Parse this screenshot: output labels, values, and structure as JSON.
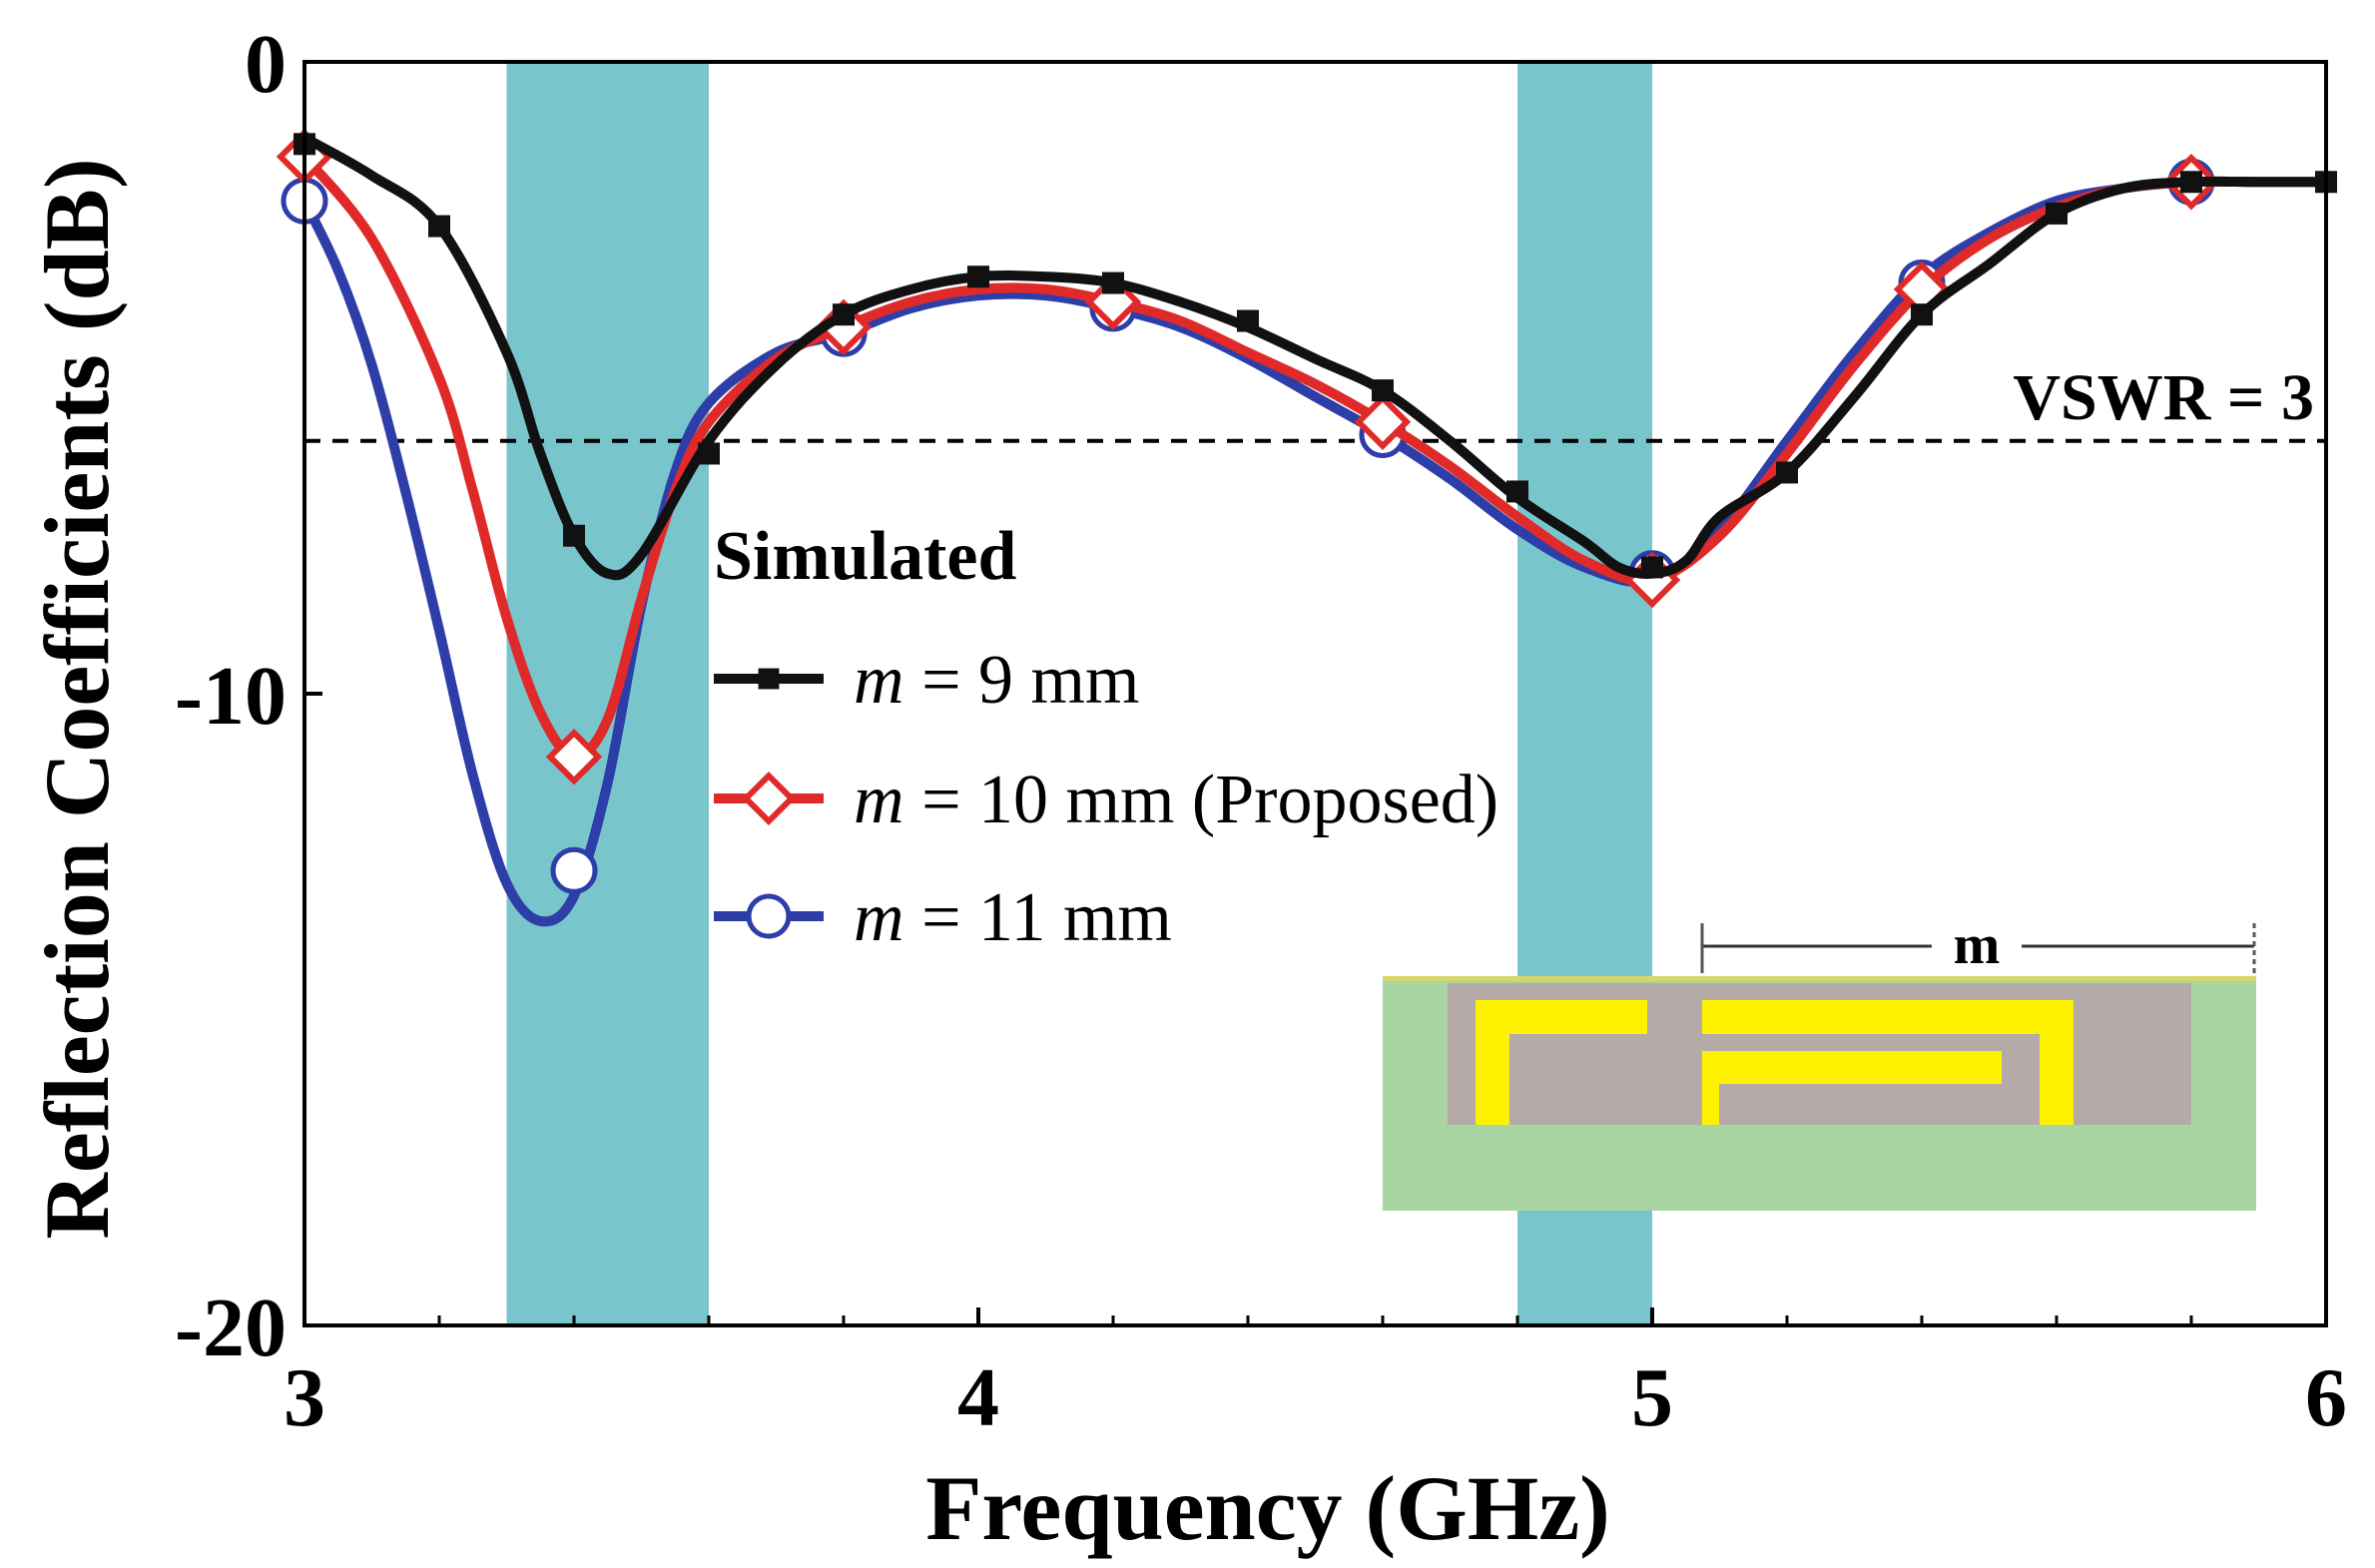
{
  "chart_data": {
    "type": "line",
    "title": "",
    "xlabel": "Frequency (GHz)",
    "ylabel": "Reflection Coefficients (dB)",
    "xlim": [
      3,
      6
    ],
    "ylim": [
      -20,
      0
    ],
    "xticks": [
      3,
      4,
      5,
      6
    ],
    "yticks": [
      0,
      -10,
      -20
    ],
    "xtick_labels": [
      "3",
      "4",
      "5",
      "6"
    ],
    "ytick_labels": [
      "0",
      "-10",
      "-20"
    ],
    "shaded_bands": [
      {
        "x0": 3.3,
        "x1": 3.6,
        "color": "#78C5CC"
      },
      {
        "x0": 4.8,
        "x1": 5.0,
        "color": "#78C5CC"
      }
    ],
    "reference_line": {
      "y": -6.0,
      "label": "VSWR = 3",
      "style": "dashed"
    },
    "legend": {
      "title": "Simulated",
      "position": "center"
    },
    "series": [
      {
        "name": "m = 9 mm",
        "label_var": "m",
        "label_rest": " = 9 mm",
        "color": "#111111",
        "marker": "square",
        "x": [
          3.0,
          3.1,
          3.2,
          3.3,
          3.35,
          3.4,
          3.45,
          3.5,
          3.6,
          3.7,
          3.8,
          3.9,
          4.0,
          4.1,
          4.2,
          4.3,
          4.4,
          4.5,
          4.6,
          4.7,
          4.8,
          4.9,
          4.95,
          5.0,
          5.05,
          5.1,
          5.2,
          5.3,
          5.4,
          5.5,
          5.6,
          5.7,
          5.8,
          5.9,
          6.0
        ],
        "y": [
          -1.2,
          -1.8,
          -2.6,
          -4.6,
          -6.2,
          -7.5,
          -8.1,
          -7.8,
          -6.0,
          -4.8,
          -4.0,
          -3.6,
          -3.4,
          -3.4,
          -3.5,
          -3.8,
          -4.2,
          -4.7,
          -5.2,
          -6.0,
          -6.9,
          -7.6,
          -8.0,
          -8.1,
          -7.9,
          -7.2,
          -6.5,
          -5.3,
          -4.0,
          -3.2,
          -2.4,
          -2.0,
          -1.9,
          -1.9,
          -1.9
        ],
        "marker_x": [
          3.0,
          3.2,
          3.4,
          3.6,
          3.8,
          4.0,
          4.2,
          4.4,
          4.6,
          4.8,
          5.0,
          5.2,
          5.4,
          5.6,
          5.8,
          6.0
        ],
        "marker_y": [
          -1.3,
          -2.6,
          -7.5,
          -6.2,
          -4.0,
          -3.4,
          -3.5,
          -4.1,
          -5.2,
          -6.8,
          -8.0,
          -6.5,
          -4.0,
          -2.4,
          -1.9,
          -1.9
        ]
      },
      {
        "name": "m = 10 mm (Proposed)",
        "label_var": "m",
        "label_rest": " = 10 mm (Proposed)",
        "color": "#E02A2A",
        "marker": "diamond",
        "x": [
          3.0,
          3.1,
          3.2,
          3.25,
          3.3,
          3.35,
          3.4,
          3.45,
          3.5,
          3.55,
          3.6,
          3.7,
          3.8,
          3.9,
          4.0,
          4.1,
          4.2,
          4.3,
          4.4,
          4.5,
          4.6,
          4.7,
          4.8,
          4.9,
          5.0,
          5.1,
          5.2,
          5.3,
          5.4,
          5.5,
          5.6,
          5.7,
          5.8,
          5.9,
          6.0
        ],
        "y": [
          -1.5,
          -2.8,
          -5.0,
          -6.8,
          -8.8,
          -10.3,
          -11.0,
          -10.4,
          -8.5,
          -6.8,
          -5.7,
          -4.7,
          -4.2,
          -3.8,
          -3.6,
          -3.6,
          -3.8,
          -4.1,
          -4.6,
          -5.1,
          -5.7,
          -6.4,
          -7.2,
          -7.9,
          -8.2,
          -7.5,
          -6.2,
          -4.8,
          -3.6,
          -2.8,
          -2.3,
          -2.0,
          -1.9,
          -1.9,
          -1.9
        ],
        "marker_x": [
          3.0,
          3.4,
          3.8,
          4.2,
          4.6,
          5.0,
          5.4,
          5.8
        ],
        "marker_y": [
          -1.5,
          -11.0,
          -4.2,
          -3.8,
          -5.7,
          -8.2,
          -3.6,
          -1.9
        ]
      },
      {
        "name": "m = 11 mm",
        "label_var": "m",
        "label_rest": " = 11 mm",
        "color": "#2E3EA8",
        "marker": "circle",
        "x": [
          3.0,
          3.05,
          3.1,
          3.15,
          3.2,
          3.25,
          3.3,
          3.35,
          3.4,
          3.45,
          3.5,
          3.55,
          3.6,
          3.7,
          3.8,
          3.9,
          4.0,
          4.1,
          4.2,
          4.3,
          4.4,
          4.5,
          4.6,
          4.7,
          4.8,
          4.9,
          5.0,
          5.1,
          5.2,
          5.3,
          5.4,
          5.5,
          5.6,
          5.7,
          5.8,
          5.9,
          6.0
        ],
        "y": [
          -2.2,
          -3.3,
          -4.8,
          -6.8,
          -9.0,
          -11.3,
          -13.0,
          -13.6,
          -13.2,
          -11.4,
          -8.6,
          -6.5,
          -5.4,
          -4.6,
          -4.3,
          -3.9,
          -3.7,
          -3.7,
          -3.9,
          -4.2,
          -4.7,
          -5.3,
          -5.9,
          -6.6,
          -7.4,
          -8.0,
          -8.2,
          -7.4,
          -6.0,
          -4.6,
          -3.4,
          -2.7,
          -2.2,
          -2.0,
          -1.9,
          -1.9,
          -1.9
        ],
        "marker_x": [
          3.0,
          3.4,
          3.8,
          4.2,
          4.6,
          5.0,
          5.4,
          5.8
        ],
        "marker_y": [
          -2.2,
          -12.8,
          -4.3,
          -3.9,
          -5.9,
          -8.1,
          -3.5,
          -1.9
        ]
      }
    ]
  }
}
